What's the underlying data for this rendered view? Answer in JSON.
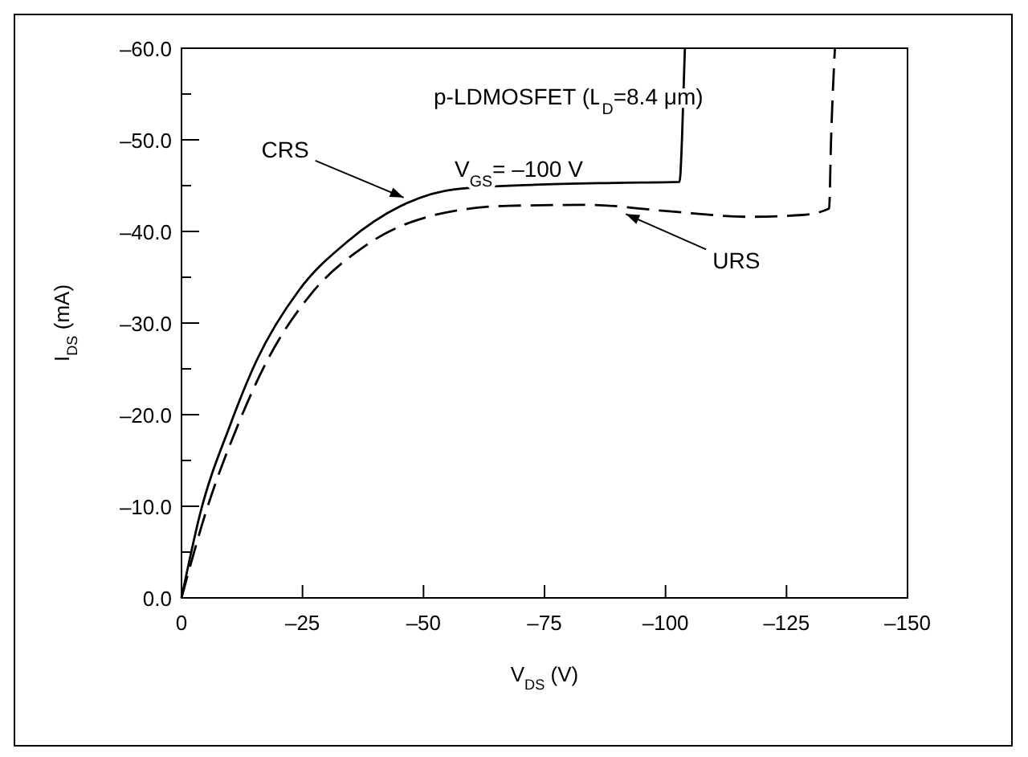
{
  "chart_data": {
    "type": "line",
    "xlabel": "V$_{DS}$ (V)",
    "ylabel": "I$_{DS}$ (mA)",
    "xlim": [
      0,
      -150
    ],
    "ylim": [
      0,
      -60
    ],
    "xticks": [
      0,
      {
        "value": -25,
        "label": "–25"
      },
      {
        "value": -50,
        "label": "–50"
      },
      {
        "value": -75,
        "label": "–75"
      },
      {
        "value": -100,
        "label": "–100"
      },
      {
        "value": -125,
        "label": "–125"
      },
      {
        "value": -150,
        "label": "–150"
      }
    ],
    "yticks": [
      {
        "value": 0,
        "label": "0.0"
      },
      {
        "value": -5,
        "label": null
      },
      {
        "value": -10,
        "label": "–10.0"
      },
      {
        "value": -15,
        "label": null
      },
      {
        "value": -20,
        "label": "–20.0"
      },
      {
        "value": -25,
        "label": null
      },
      {
        "value": -30,
        "label": "–30.0"
      },
      {
        "value": -35,
        "label": null
      },
      {
        "value": -40,
        "label": "–40.0"
      },
      {
        "value": -45,
        "label": null
      },
      {
        "value": -50,
        "label": "–50.0"
      },
      {
        "value": -55,
        "label": null
      },
      {
        "value": -60,
        "label": "–60.0"
      }
    ],
    "grid": false,
    "marker": "none",
    "series": [
      {
        "color": "#000000",
        "line_style": "solid",
        "x": [
          0,
          -3.9,
          -10,
          -15.5,
          -24.3,
          -34.3,
          -45.4,
          -56.4,
          -73,
          -89.6,
          -102.9,
          -103.4,
          -104
        ],
        "values": [
          0,
          -9.3,
          -18.8,
          -25.9,
          -33.6,
          -38.9,
          -42.8,
          -44.6,
          -45.1,
          -45.3,
          -45.4,
          -50,
          -60
        ]
      },
      {
        "color": "#000000",
        "line_style": "dashed",
        "x": [
          0,
          -5,
          -11.6,
          -17.7,
          -26.5,
          -37.6,
          -50.9,
          -67.5,
          -84,
          -100.7,
          -117.3,
          -128.3,
          -133.8,
          -134.2,
          -135
        ],
        "values": [
          0,
          -9.3,
          -18.8,
          -25.9,
          -33,
          -38.3,
          -41.6,
          -42.8,
          -42.9,
          -42.2,
          -41.6,
          -41.8,
          -42.5,
          -50,
          -60
        ]
      }
    ],
    "annotations": [
      "p-LDMOSFET (L$_{D}$=8.4 μm)",
      "V$_{GS}$= –100 V",
      {
        "text": "CRS",
        "x": -45.9,
        "y": -43.7
      },
      {
        "text": "URS",
        "x": -91.8,
        "y": -41.9
      }
    ]
  }
}
